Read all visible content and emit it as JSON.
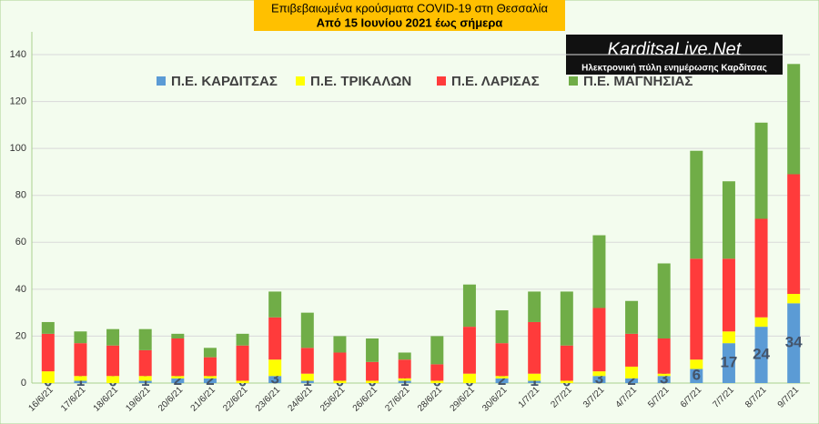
{
  "chart_data": {
    "type": "stacked_bar",
    "title": "Επιβεβαιωμένα κρούσματα COVID-19 στη Θεσσαλία",
    "subtitle": "Από 15 Ιουνίου 2021 έως σήμερα",
    "annotations": [
      "KarditsaLive.Net",
      "Ηλεκτρονική πύλη ενημέρωσης Καρδίτσας"
    ],
    "categories": [
      "16/6/21",
      "17/6/21",
      "18/6/21",
      "19/6/21",
      "20/6/21",
      "21/6/21",
      "22/6/21",
      "23/6/21",
      "24/6/21",
      "25/6/21",
      "26/6/21",
      "27/6/21",
      "28/6/21",
      "29/6/21",
      "30/6/21",
      "1/7/21",
      "2/7/21",
      "3/7/21",
      "4/7/21",
      "5/7/21",
      "6/7/21",
      "7/7/21",
      "8/7/21",
      "9/7/21"
    ],
    "series": [
      {
        "name": "Π.Ε. ΚΑΡΔΙΤΣΑΣ",
        "color": "#5b9bd5",
        "show_labels": true,
        "values": [
          0,
          1,
          0,
          1,
          2,
          2,
          0,
          3,
          1,
          0,
          0,
          1,
          0,
          0,
          2,
          1,
          0,
          3,
          2,
          3,
          6,
          17,
          24,
          34
        ]
      },
      {
        "name": "Π.Ε. ΤΡΙΚΑΛΩΝ",
        "color": "#ffff00",
        "values": [
          5,
          2,
          3,
          2,
          1,
          1,
          1,
          7,
          3,
          1,
          1,
          1,
          1,
          4,
          1,
          3,
          1,
          2,
          5,
          1,
          4,
          5,
          4,
          4
        ]
      },
      {
        "name": "Π.Ε. ΛΑΡΙΣΑΣ",
        "color": "#ff3b3b",
        "values": [
          16,
          14,
          13,
          11,
          16,
          8,
          15,
          18,
          11,
          12,
          8,
          8,
          7,
          20,
          14,
          22,
          15,
          27,
          14,
          15,
          43,
          31,
          42,
          51
        ]
      },
      {
        "name": "Π.Ε. ΜΑΓΝΗΣΙΑΣ",
        "color": "#70ad47",
        "values": [
          5,
          5,
          7,
          9,
          2,
          4,
          5,
          11,
          15,
          7,
          10,
          3,
          12,
          18,
          14,
          13,
          23,
          31,
          14,
          32,
          46,
          33,
          41,
          47
        ]
      }
    ],
    "ylim": [
      0,
      140
    ],
    "yticks": [
      0,
      20,
      40,
      60,
      80,
      100,
      120,
      140
    ],
    "grid": true
  }
}
